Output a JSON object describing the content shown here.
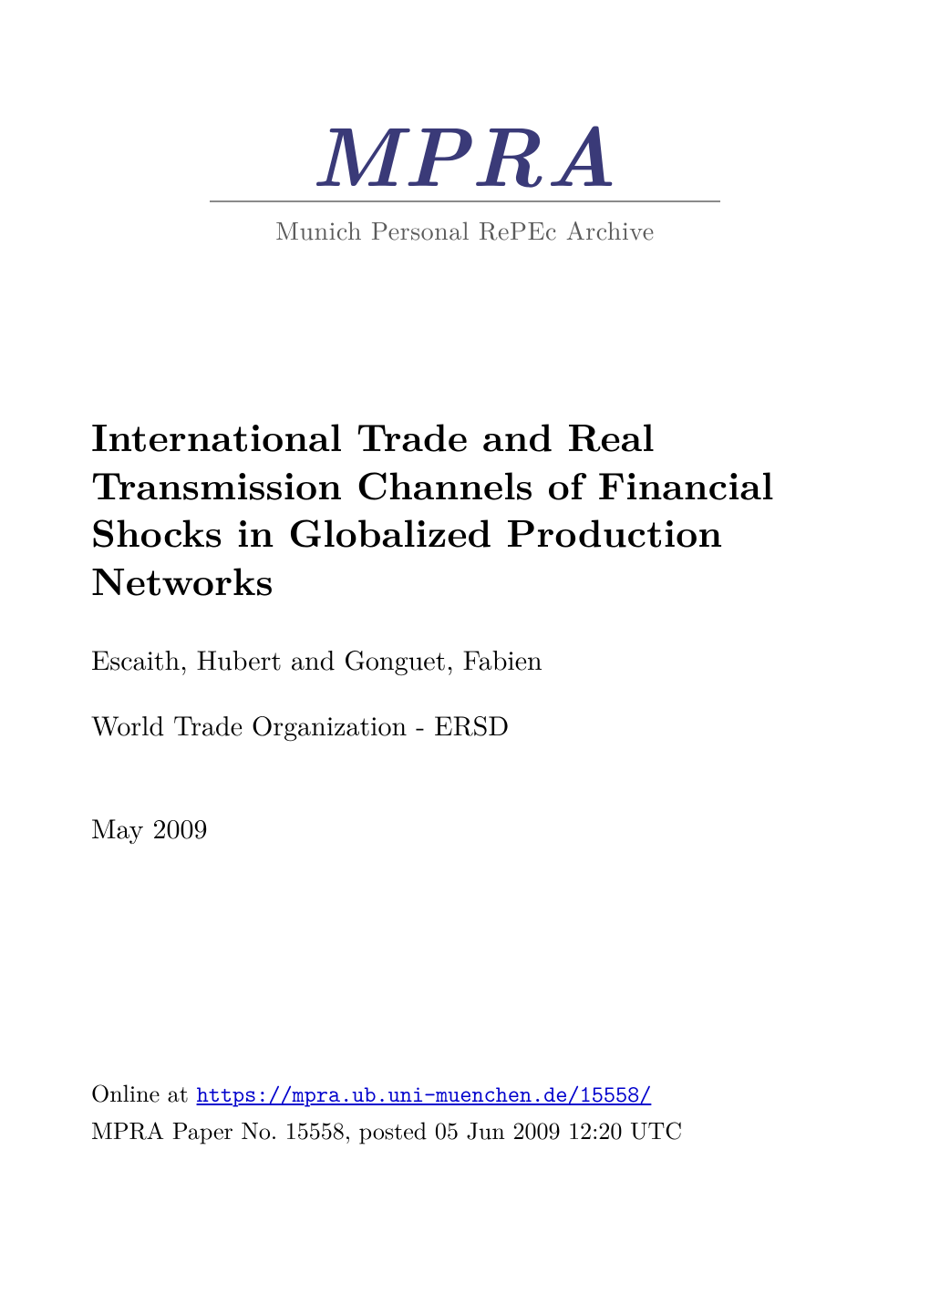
{
  "logo": {
    "word": "MPRA",
    "subtitle": "Munich Personal RePEc Archive",
    "word_color": "#3a3a78",
    "subtitle_color": "#5a5a5a",
    "rule_color": "#8a8a8a",
    "word_fontsize": 92,
    "subtitle_fontsize": 28
  },
  "title": "International Trade and Real Transmission Channels of Financial Shocks in Globalized Production Networks",
  "title_fontsize": 42,
  "authors": "Escaith, Hubert and Gonguet, Fabien",
  "affiliation": "World Trade Organization - ERSD",
  "date": "May 2009",
  "footer": {
    "online_label": "Online at ",
    "url": "https://mpra.ub.uni-muenchen.de/15558/",
    "paper_line": "MPRA Paper No. 15558, posted 05 Jun 2009 12:20 UTC"
  },
  "colors": {
    "text": "#000000",
    "background": "#ffffff",
    "link": "#0000cc"
  },
  "body_fontsize": 30
}
